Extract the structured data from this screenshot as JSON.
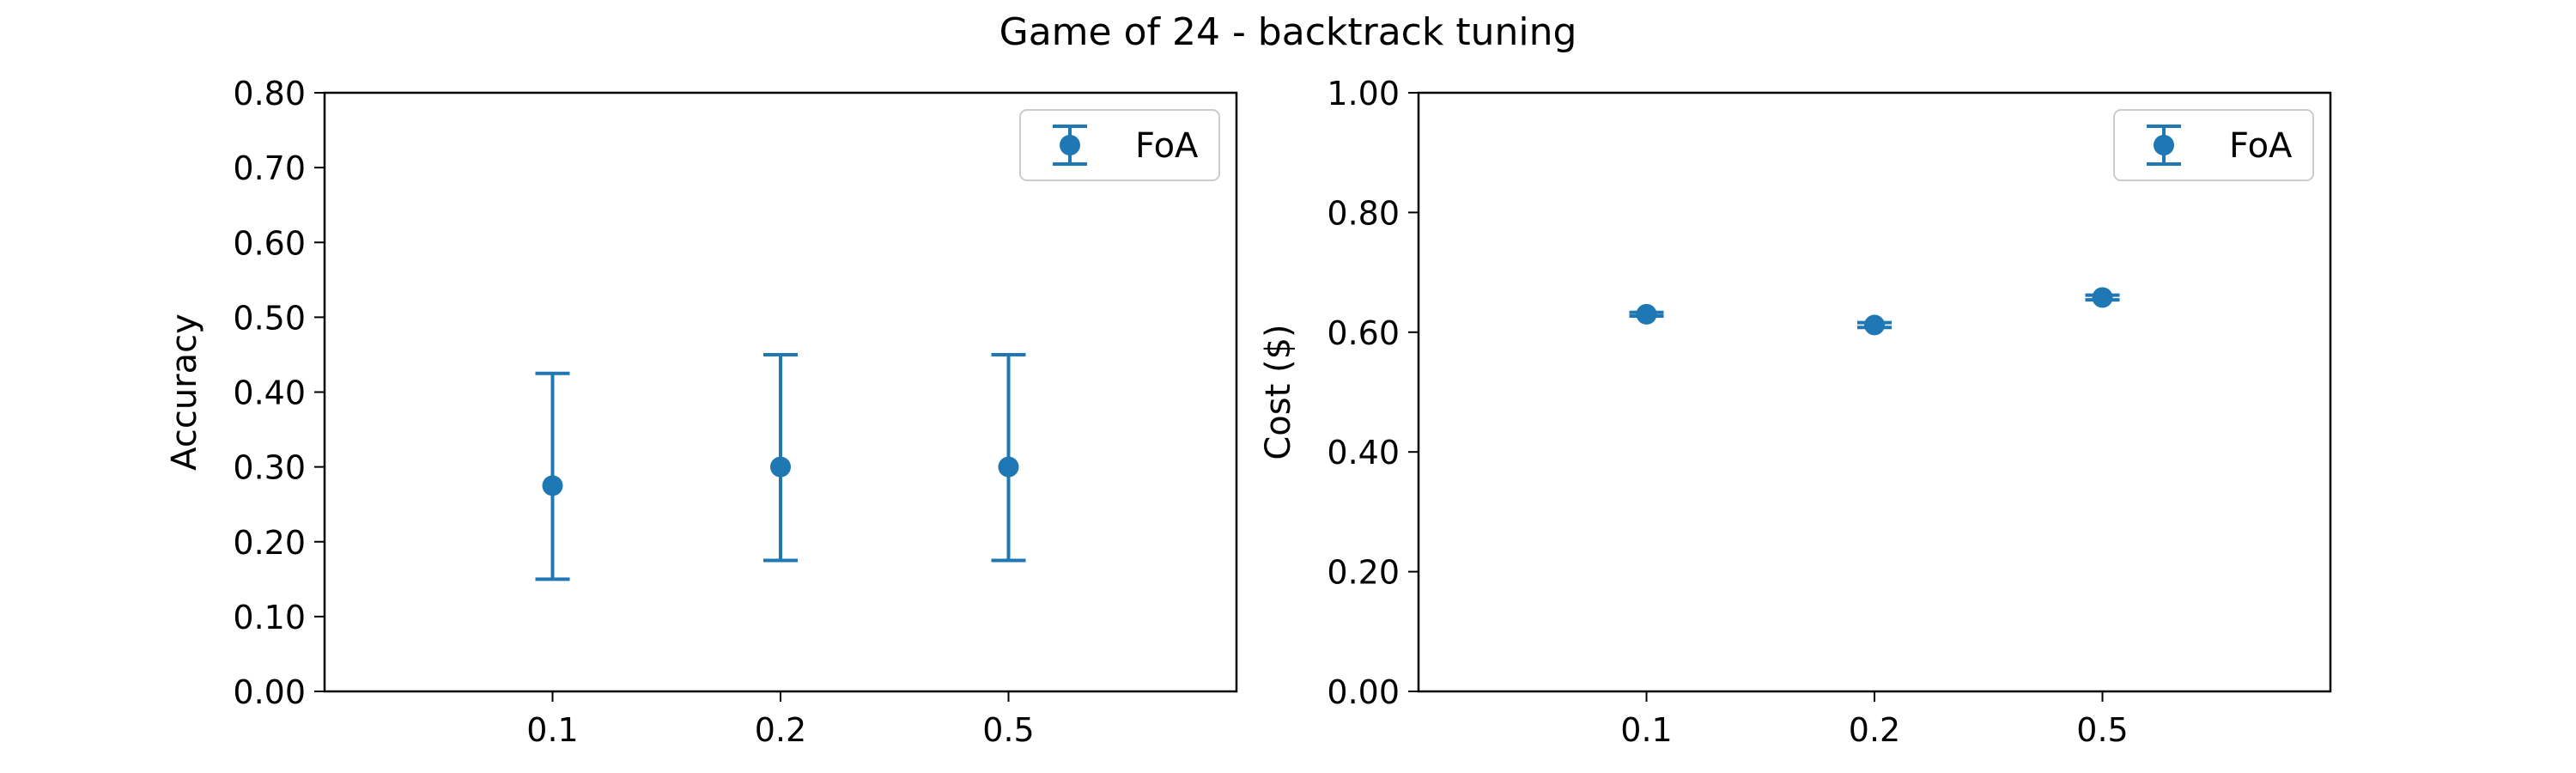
{
  "figure": {
    "title": "Game of 24 - backtrack tuning"
  },
  "colors": {
    "series": "#1f77b4",
    "axis": "#000000",
    "legend_border": "#cccccc"
  },
  "chart_data": [
    {
      "type": "scatter",
      "subtype": "errorbar",
      "categories": [
        "0.1",
        "0.2",
        "0.5"
      ],
      "series": [
        {
          "name": "FoA",
          "values": [
            0.275,
            0.3,
            0.3
          ],
          "err_low": [
            0.15,
            0.175,
            0.175
          ],
          "err_high": [
            0.425,
            0.45,
            0.45
          ]
        }
      ],
      "title": "",
      "xlabel": "",
      "ylabel": "Accuracy",
      "ylim": [
        0,
        0.8
      ],
      "yticks": [
        "0.00",
        "0.10",
        "0.20",
        "0.30",
        "0.40",
        "0.50",
        "0.60",
        "0.70",
        "0.80"
      ],
      "grid": false,
      "legend": "top-right"
    },
    {
      "type": "scatter",
      "subtype": "errorbar",
      "categories": [
        "0.1",
        "0.2",
        "0.5"
      ],
      "series": [
        {
          "name": "FoA",
          "values": [
            0.63,
            0.612,
            0.658
          ],
          "err_low": [
            0.627,
            0.608,
            0.654
          ],
          "err_high": [
            0.633,
            0.616,
            0.662
          ]
        }
      ],
      "title": "",
      "xlabel": "",
      "ylabel": "Cost ($)",
      "ylim": [
        0,
        1.0
      ],
      "yticks": [
        "0.00",
        "0.20",
        "0.40",
        "0.60",
        "0.80",
        "1.00"
      ],
      "grid": false,
      "legend": "top-right"
    }
  ]
}
